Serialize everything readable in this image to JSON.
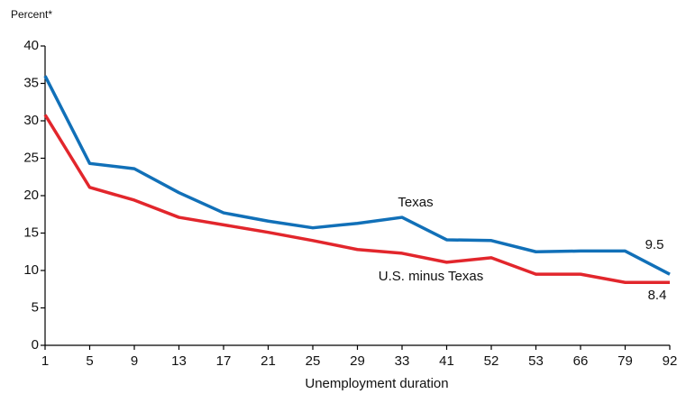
{
  "chart_data": {
    "type": "line",
    "y_label": "Percent*",
    "x_label": "Unemployment duration",
    "categories": [
      "1",
      "5",
      "9",
      "13",
      "17",
      "21",
      "25",
      "29",
      "33",
      "41",
      "52",
      "53",
      "66",
      "79",
      "92"
    ],
    "series": [
      {
        "name": "Texas",
        "color": "#1170b8",
        "values": [
          36.0,
          24.3,
          23.6,
          20.4,
          17.7,
          16.6,
          15.7,
          16.3,
          17.1,
          14.1,
          14.0,
          12.5,
          12.6,
          12.6,
          9.5
        ]
      },
      {
        "name": "U.S. minus Texas",
        "color": "#e2262c",
        "values": [
          30.8,
          21.1,
          19.4,
          17.1,
          16.1,
          15.1,
          14.0,
          12.8,
          12.3,
          11.1,
          11.7,
          9.5,
          9.5,
          8.4,
          8.4
        ]
      }
    ],
    "ylim": [
      0,
      40
    ],
    "yticks": [
      0,
      5,
      10,
      15,
      20,
      25,
      30,
      35,
      40
    ],
    "grid": false
  }
}
